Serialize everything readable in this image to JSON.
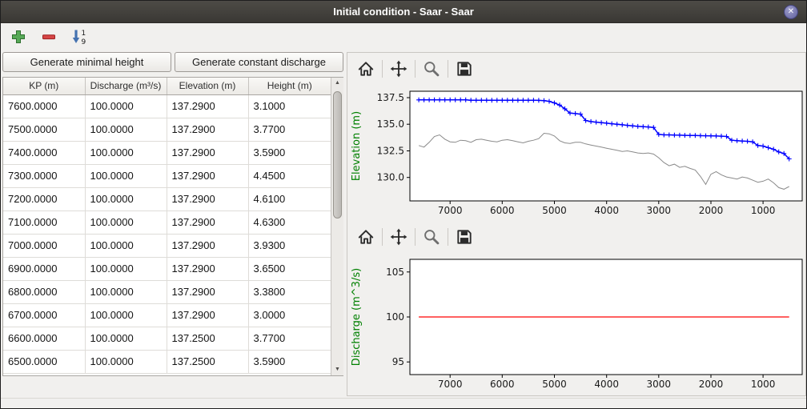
{
  "window": {
    "title": "Initial condition - Saar - Saar",
    "close_glyph": "✕"
  },
  "toolbar": {
    "icons": [
      "add",
      "remove",
      "sort-ascending"
    ],
    "sort_digit_top": "1",
    "sort_digit_bottom": "9"
  },
  "buttons": {
    "minimal_height": "Generate minimal height",
    "constant_discharge": "Generate constant discharge"
  },
  "table": {
    "columns": [
      "KP (m)",
      "Discharge (m³/s)",
      "Elevation (m)",
      "Height (m)"
    ],
    "rows": [
      [
        "7600.0000",
        "100.0000",
        "137.2900",
        "3.1000"
      ],
      [
        "7500.0000",
        "100.0000",
        "137.2900",
        "3.7700"
      ],
      [
        "7400.0000",
        "100.0000",
        "137.2900",
        "3.5900"
      ],
      [
        "7300.0000",
        "100.0000",
        "137.2900",
        "4.4500"
      ],
      [
        "7200.0000",
        "100.0000",
        "137.2900",
        "4.6100"
      ],
      [
        "7100.0000",
        "100.0000",
        "137.2900",
        "4.6300"
      ],
      [
        "7000.0000",
        "100.0000",
        "137.2900",
        "3.9300"
      ],
      [
        "6900.0000",
        "100.0000",
        "137.2900",
        "3.6500"
      ],
      [
        "6800.0000",
        "100.0000",
        "137.2900",
        "3.3800"
      ],
      [
        "6700.0000",
        "100.0000",
        "137.2900",
        "3.0000"
      ],
      [
        "6600.0000",
        "100.0000",
        "137.2500",
        "3.7700"
      ],
      [
        "6500.0000",
        "100.0000",
        "137.2500",
        "3.5900"
      ]
    ]
  },
  "scrollbar": {
    "up_glyph": "▲",
    "down_glyph": "▼"
  },
  "plot_toolbar": {
    "icons": [
      "home",
      "pan",
      "zoom",
      "save"
    ]
  },
  "chart_data": [
    {
      "type": "line",
      "name": "elevation-profile",
      "ylabel": "Elevation (m)",
      "axis_label_color": "#008000",
      "x_reversed": true,
      "xlim": [
        7770,
        250
      ],
      "ylim": [
        127.8,
        138.1
      ],
      "xticks": [
        7000,
        6000,
        5000,
        4000,
        3000,
        2000,
        1000
      ],
      "yticks": [
        130.0,
        132.5,
        135.0,
        137.5
      ],
      "ytick_labels": [
        "130.0",
        "132.5",
        "135.0",
        "137.5"
      ],
      "grid": false,
      "x": [
        7600,
        7500,
        7400,
        7300,
        7200,
        7100,
        7000,
        6900,
        6800,
        6700,
        6600,
        6500,
        6400,
        6300,
        6200,
        6100,
        6000,
        5900,
        5800,
        5700,
        5600,
        5500,
        5400,
        5300,
        5200,
        5100,
        5000,
        4900,
        4800,
        4700,
        4600,
        4500,
        4400,
        4300,
        4200,
        4100,
        4000,
        3900,
        3800,
        3700,
        3600,
        3500,
        3400,
        3300,
        3200,
        3100,
        3000,
        2900,
        2800,
        2700,
        2600,
        2500,
        2400,
        2300,
        2200,
        2100,
        2000,
        1900,
        1800,
        1700,
        1600,
        1500,
        1400,
        1300,
        1200,
        1100,
        1000,
        900,
        800,
        700,
        600,
        500
      ],
      "series": [
        {
          "name": "water-surface-elevation",
          "color": "#0000ff",
          "marker": "+",
          "line_width": 1.5,
          "y": [
            137.29,
            137.29,
            137.29,
            137.29,
            137.29,
            137.29,
            137.29,
            137.29,
            137.29,
            137.29,
            137.25,
            137.25,
            137.25,
            137.25,
            137.25,
            137.25,
            137.25,
            137.25,
            137.25,
            137.25,
            137.25,
            137.25,
            137.25,
            137.24,
            137.22,
            137.15,
            137.0,
            136.8,
            136.45,
            136.05,
            136.0,
            135.95,
            135.35,
            135.25,
            135.2,
            135.15,
            135.1,
            135.05,
            135.0,
            134.95,
            134.9,
            134.85,
            134.8,
            134.78,
            134.75,
            134.7,
            134.05,
            134.0,
            134.0,
            133.98,
            133.97,
            133.96,
            133.95,
            133.94,
            133.93,
            133.92,
            133.91,
            133.9,
            133.88,
            133.85,
            133.5,
            133.45,
            133.42,
            133.4,
            133.35,
            133.0,
            132.95,
            132.8,
            132.65,
            132.4,
            132.25,
            131.75
          ]
        },
        {
          "name": "bed-elevation",
          "color": "#8a8a8a",
          "line_width": 1,
          "y": [
            133.0,
            132.85,
            133.3,
            133.85,
            134.0,
            133.6,
            133.35,
            133.3,
            133.5,
            133.45,
            133.3,
            133.55,
            133.6,
            133.5,
            133.4,
            133.35,
            133.5,
            133.55,
            133.45,
            133.35,
            133.25,
            133.4,
            133.5,
            133.65,
            134.15,
            134.1,
            133.9,
            133.45,
            133.25,
            133.2,
            133.3,
            133.3,
            133.15,
            133.05,
            132.95,
            132.85,
            132.75,
            132.65,
            132.55,
            132.45,
            132.5,
            132.4,
            132.3,
            132.25,
            132.3,
            132.2,
            131.85,
            131.4,
            131.1,
            131.25,
            130.95,
            131.05,
            130.85,
            130.7,
            130.1,
            129.35,
            130.3,
            130.55,
            130.25,
            130.05,
            129.95,
            129.85,
            130.05,
            129.95,
            129.75,
            129.55,
            129.65,
            129.85,
            129.5,
            129.05,
            128.9,
            129.15
          ]
        }
      ]
    },
    {
      "type": "line",
      "name": "discharge-profile",
      "ylabel": "Discharge (m^3/s)",
      "axis_label_color": "#008000",
      "x_reversed": true,
      "xlim": [
        7770,
        250
      ],
      "ylim": [
        93.6,
        106.4
      ],
      "xticks": [
        7000,
        6000,
        5000,
        4000,
        3000,
        2000,
        1000
      ],
      "yticks": [
        95,
        100,
        105
      ],
      "ytick_labels": [
        "95",
        "100",
        "105"
      ],
      "grid": false,
      "x": [
        7600,
        500
      ],
      "series": [
        {
          "name": "constant-discharge",
          "color": "#ff0000",
          "line_width": 1.3,
          "y": [
            100,
            100
          ]
        }
      ]
    }
  ]
}
